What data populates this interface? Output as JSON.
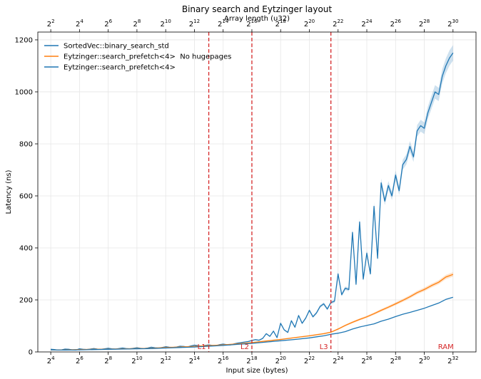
{
  "chart_data": {
    "type": "line",
    "title": "Binary search and Eytzinger layout",
    "xlabel": "Input size (bytes)",
    "ylabel": "Latency (ns)",
    "top_xlabel": "Array length (u32)",
    "x_scale": "log2",
    "xlim_log2": [
      3.1,
      33.6
    ],
    "ylim": [
      0,
      1230
    ],
    "y_ticks": [
      0,
      200,
      400,
      600,
      800,
      1000,
      1200
    ],
    "bottom_x_ticks": [
      4,
      6,
      8,
      10,
      12,
      14,
      16,
      18,
      20,
      22,
      24,
      26,
      28,
      30,
      32
    ],
    "top_x_ticks": [
      2,
      4,
      6,
      8,
      10,
      12,
      14,
      16,
      18,
      20,
      22,
      24,
      26,
      28,
      30
    ],
    "top_axis_offset_log2": 2,
    "grid": true,
    "legend_position": "upper-left",
    "cache_levels": [
      {
        "label": "L1",
        "x_log2": 15,
        "color": "#d62728"
      },
      {
        "label": "L2",
        "x_log2": 18,
        "color": "#d62728"
      },
      {
        "label": "L3",
        "x_log2": 23.5,
        "color": "#d62728"
      }
    ],
    "ram_label": "RAM",
    "series": [
      {
        "name": "SortedVec::binary_search_std",
        "color": "#1f77b4",
        "x_log2": [
          4,
          4.25,
          4.5,
          4.75,
          5,
          5.25,
          5.5,
          5.75,
          6,
          6.25,
          6.5,
          6.75,
          7,
          7.25,
          7.5,
          7.75,
          8,
          8.25,
          8.5,
          8.75,
          9,
          9.25,
          9.5,
          9.75,
          10,
          10.25,
          10.5,
          10.75,
          11,
          11.25,
          11.5,
          11.75,
          12,
          12.25,
          12.5,
          12.75,
          13,
          13.25,
          13.5,
          13.75,
          14,
          14.25,
          14.5,
          14.75,
          15,
          15.25,
          15.5,
          15.75,
          16,
          16.25,
          16.5,
          16.75,
          17,
          17.25,
          17.5,
          17.75,
          18,
          18.25,
          18.5,
          18.75,
          19,
          19.25,
          19.5,
          19.75,
          20,
          20.25,
          20.5,
          20.75,
          21,
          21.25,
          21.5,
          21.75,
          22,
          22.25,
          22.5,
          22.75,
          23,
          23.25,
          23.5,
          23.75,
          24,
          24.25,
          24.5,
          24.75,
          25,
          25.25,
          25.5,
          25.75,
          26,
          26.25,
          26.5,
          26.75,
          27,
          27.25,
          27.5,
          27.75,
          28,
          28.25,
          28.5,
          28.75,
          29,
          29.25,
          29.5,
          29.75,
          30,
          30.25,
          30.5,
          30.75,
          31,
          31.25,
          31.5,
          31.75,
          32
        ],
        "values": [
          10,
          9,
          7,
          8,
          11,
          10,
          8,
          7,
          12,
          10,
          9,
          11,
          13,
          11,
          10,
          12,
          14,
          12,
          11,
          13,
          15,
          13,
          12,
          14,
          16,
          14,
          13,
          15,
          18,
          16,
          15,
          17,
          20,
          18,
          17,
          19,
          22,
          21,
          19,
          23,
          26,
          24,
          22,
          25,
          27,
          25,
          24,
          28,
          30,
          28,
          27,
          31,
          34,
          36,
          38,
          40,
          44,
          47,
          45,
          52,
          70,
          60,
          80,
          55,
          110,
          85,
          75,
          120,
          95,
          140,
          110,
          130,
          160,
          135,
          150,
          175,
          185,
          165,
          190,
          195,
          300,
          220,
          245,
          240,
          460,
          260,
          500,
          280,
          380,
          300,
          560,
          360,
          650,
          580,
          640,
          600,
          680,
          620,
          720,
          740,
          790,
          750,
          850,
          870,
          860,
          920,
          960,
          1000,
          990,
          1060,
          1100,
          1130,
          1150
        ],
        "band": true
      },
      {
        "name": "Eytzinger::search_prefetch<4>  No hugepages",
        "color": "#ff7f0e",
        "x_log2": [
          4,
          5,
          6,
          7,
          8,
          9,
          10,
          11,
          12,
          13,
          14,
          15,
          16,
          17,
          18,
          19,
          20,
          21,
          22,
          22.5,
          23,
          23.5,
          24,
          24.5,
          25,
          25.5,
          26,
          26.5,
          27,
          27.5,
          28,
          28.5,
          29,
          29.5,
          30,
          30.5,
          31,
          31.5,
          32
        ],
        "values": [
          8,
          8,
          9,
          10,
          11,
          12,
          13,
          14,
          17,
          19,
          21,
          24,
          27,
          31,
          36,
          42,
          48,
          55,
          62,
          66,
          70,
          76,
          88,
          102,
          114,
          125,
          135,
          147,
          160,
          172,
          185,
          198,
          212,
          228,
          240,
          255,
          268,
          288,
          298
        ],
        "band": true
      },
      {
        "name": "Eytzinger::search_prefetch<4>",
        "color": "#1f77b4",
        "x_log2": [
          4,
          5,
          6,
          7,
          8,
          9,
          10,
          11,
          12,
          13,
          14,
          15,
          16,
          17,
          18,
          19,
          20,
          21,
          22,
          22.5,
          23,
          23.5,
          24,
          24.5,
          25,
          25.5,
          26,
          26.5,
          27,
          27.5,
          28,
          28.5,
          29,
          29.5,
          30,
          30.5,
          31,
          31.5,
          32
        ],
        "values": [
          8,
          7,
          8,
          9,
          10,
          11,
          12,
          13,
          15,
          17,
          19,
          22,
          25,
          29,
          33,
          38,
          43,
          48,
          54,
          58,
          62,
          68,
          72,
          78,
          88,
          96,
          102,
          108,
          118,
          126,
          136,
          145,
          152,
          160,
          168,
          178,
          188,
          202,
          210
        ],
        "band": false
      }
    ]
  }
}
